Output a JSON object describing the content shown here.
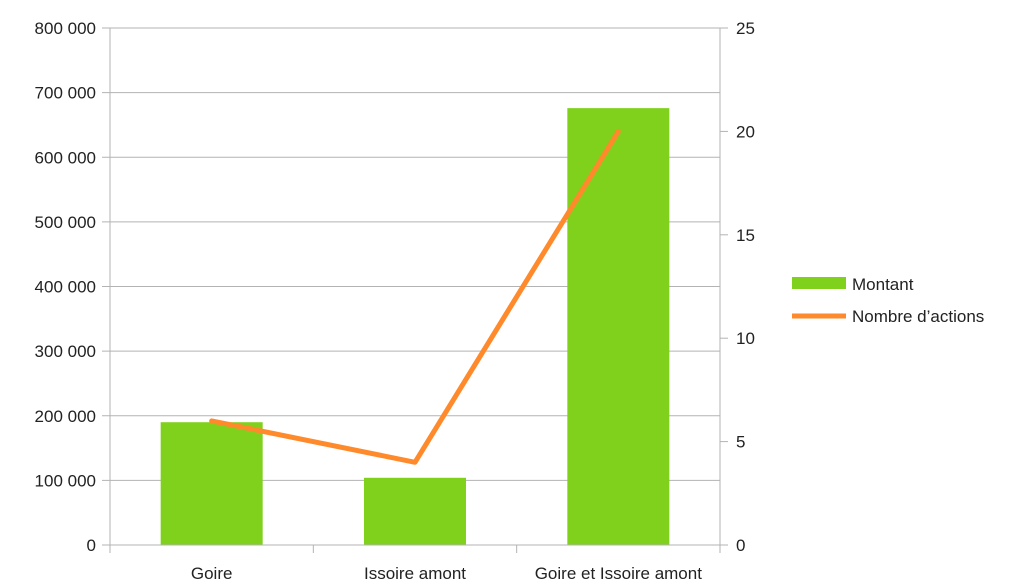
{
  "chart_data": {
    "type": "bar+line",
    "title": "",
    "xlabel": "",
    "ylabel": "",
    "categories": [
      "Goire",
      "Issoire amont",
      "Goire et Issoire amont"
    ],
    "series": [
      {
        "name": "Montant",
        "type": "bar",
        "axis": "left",
        "color": "#7fd11b",
        "values": [
          190000,
          104000,
          676000
        ]
      },
      {
        "name": "Nombre d’actions",
        "type": "line",
        "axis": "right",
        "color": "#ff8a2b",
        "values": [
          6,
          4,
          20
        ]
      }
    ],
    "y_left": {
      "ylim": [
        0,
        800000
      ],
      "ticks": [
        0,
        100000,
        200000,
        300000,
        400000,
        500000,
        600000,
        700000,
        800000
      ],
      "tick_labels": [
        "0",
        "100 000",
        "200 000",
        "300 000",
        "400 000",
        "500 000",
        "600 000",
        "700 000",
        "800 000"
      ]
    },
    "y_right": {
      "ylim": [
        0,
        25
      ],
      "ticks": [
        0,
        5,
        10,
        15,
        20,
        25
      ],
      "tick_labels": [
        "0",
        "5",
        "10",
        "15",
        "20",
        "25"
      ]
    },
    "grid": true,
    "legend": "right",
    "gridline_color": "#b3b3b3",
    "axis_color": "#b3b3b3"
  }
}
